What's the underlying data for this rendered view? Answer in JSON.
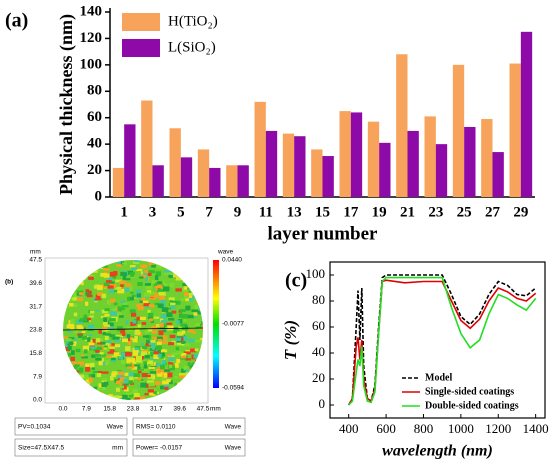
{
  "chart_data": [
    {
      "type": "bar",
      "panel_label": "(a)",
      "ylabel": "Physical thickness (nm)",
      "xlabel": "layer number",
      "categories": [
        "1",
        "3",
        "5",
        "7",
        "9",
        "11",
        "13",
        "15",
        "17",
        "19",
        "21",
        "23",
        "25",
        "27",
        "29"
      ],
      "series": [
        {
          "name": "H(TiO₂)",
          "color": "#f7a35c",
          "values": [
            22,
            73,
            52,
            36,
            24,
            72,
            48,
            36,
            65,
            57,
            108,
            61,
            100,
            59,
            101
          ]
        },
        {
          "name": "L(SiO₂)",
          "color": "#8e0aa8",
          "values": [
            55,
            24,
            30,
            22,
            24,
            50,
            46,
            31,
            64,
            41,
            50,
            40,
            53,
            34,
            125
          ]
        }
      ],
      "ylim": [
        0,
        140
      ],
      "yticks": [
        0,
        20,
        40,
        60,
        80,
        100,
        120,
        140
      ],
      "legend": "upper left"
    },
    {
      "type": "line",
      "panel_label": "(c)",
      "ylabel": "T (%)",
      "xlabel": "wavelength (nm)",
      "x": [
        400,
        420,
        440,
        450,
        460,
        470,
        480,
        500,
        520,
        540,
        560,
        580,
        600,
        700,
        800,
        900,
        950,
        1000,
        1050,
        1100,
        1150,
        1200,
        1250,
        1300,
        1350,
        1400
      ],
      "series": [
        {
          "name": "Model",
          "color": "#000000",
          "dash": true,
          "values": [
            0,
            5,
            60,
            88,
            50,
            90,
            30,
            5,
            3,
            15,
            60,
            98,
            100,
            100,
            100,
            100,
            85,
            68,
            62,
            70,
            85,
            95,
            92,
            85,
            84,
            90
          ]
        },
        {
          "name": "Single-sided coatings",
          "color": "#e00000",
          "dash": false,
          "values": [
            0,
            5,
            45,
            52,
            35,
            50,
            20,
            5,
            3,
            12,
            55,
            95,
            96,
            94,
            95,
            95,
            80,
            65,
            59,
            66,
            80,
            90,
            87,
            82,
            80,
            86
          ]
        },
        {
          "name": "Double-sided coatings",
          "color": "#22dd22",
          "dash": false,
          "values": [
            0,
            3,
            25,
            35,
            30,
            45,
            15,
            3,
            2,
            10,
            55,
            95,
            98,
            98,
            98,
            98,
            75,
            55,
            44,
            50,
            70,
            85,
            82,
            77,
            73,
            82
          ]
        }
      ],
      "xlim": [
        300,
        1450
      ],
      "xticks": [
        400,
        600,
        800,
        1000,
        1200,
        1400
      ],
      "ylim": [
        -10,
        110
      ],
      "yticks": [
        0,
        20,
        40,
        60,
        80,
        100
      ],
      "legend": "lower right"
    }
  ],
  "panel_b": {
    "panel_label": "(b)",
    "unit_top": "mm",
    "unit_right": "mm",
    "color_unit": "wave",
    "yticks": [
      "47.5",
      "39.6",
      "31.7",
      "23.8",
      "15.8",
      "7.9",
      "0.0"
    ],
    "xticks": [
      "0.0",
      "7.9",
      "15.8",
      "23.8",
      "31.7",
      "39.6",
      "47.5"
    ],
    "colorbar": [
      "0.0440",
      "-0.0077",
      "-0.0594"
    ],
    "table": [
      [
        [
          "PV=0.1034",
          "Wave"
        ],
        [
          "RMS= 0.0110",
          "Wave"
        ]
      ],
      [
        [
          "Size=47.5X47.5",
          "mm"
        ],
        [
          "Power= -0.0157",
          "Wave"
        ]
      ]
    ]
  }
}
